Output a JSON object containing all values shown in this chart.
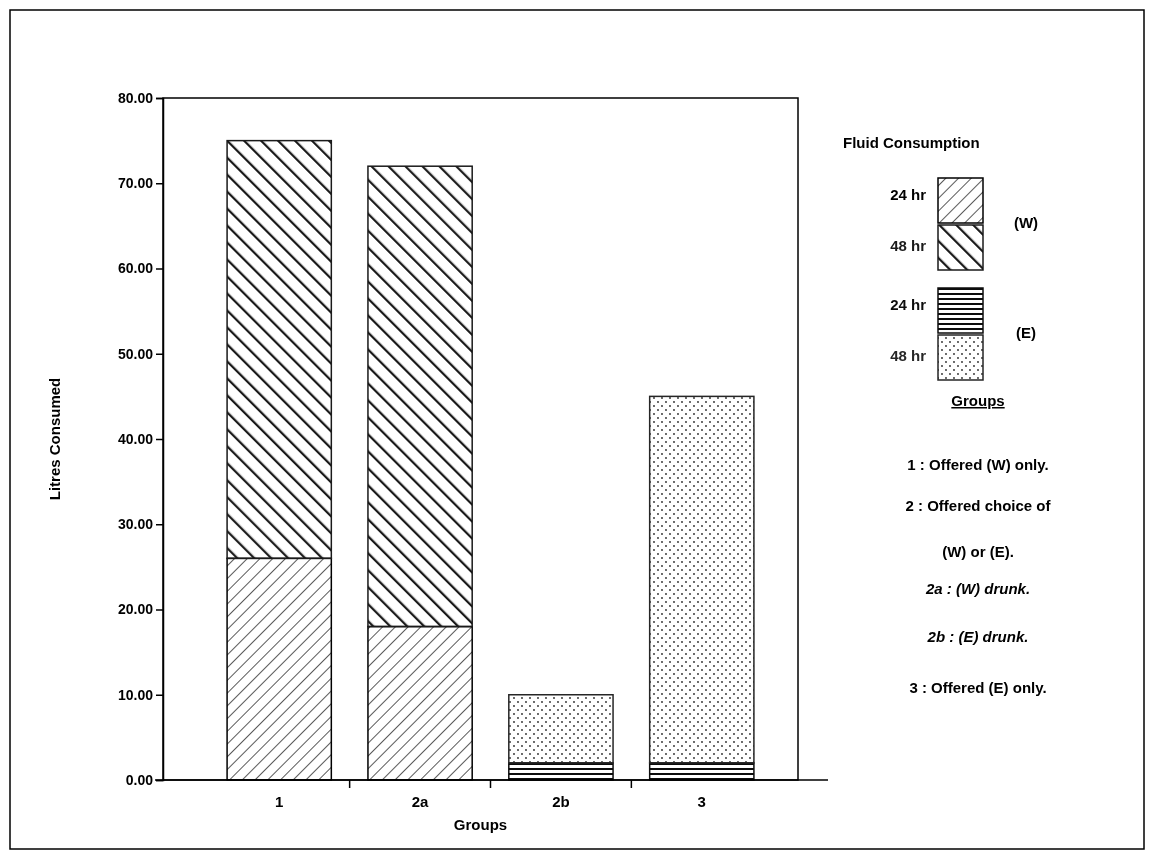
{
  "chart_data": {
    "type": "bar",
    "stacked": true,
    "xlabel": "Groups",
    "ylabel": "Litres Consumed",
    "legend_title": "Fluid Consumption",
    "legend": "right",
    "categories": [
      "1",
      "2a",
      "2b",
      "3"
    ],
    "series": [
      {
        "name": "24 hr",
        "color": "#000000",
        "values": [
          26,
          18,
          null,
          null
        ]
      },
      {
        "name": "48 hr",
        "color": "#1a1a1a",
        "values": [
          49,
          54,
          null,
          null
        ]
      },
      {
        "name": "24 hr",
        "color": "#0d0d0d",
        "values": [
          null,
          null,
          2,
          2
        ]
      },
      {
        "name": "48 hr",
        "color": "#262626",
        "values": [
          null,
          null,
          8,
          43
        ]
      }
    ],
    "ylim": [
      0,
      80
    ],
    "yticks": [
      {
        "value": 0,
        "label": "0.00"
      },
      {
        "value": 10,
        "label": "10.00"
      },
      {
        "value": 20,
        "label": "20.00"
      },
      {
        "value": 30,
        "label": "30.00"
      },
      {
        "value": 40,
        "label": "40.00"
      },
      {
        "value": 50,
        "label": "50.00"
      },
      {
        "value": 60,
        "label": "60.00"
      },
      {
        "value": 70,
        "label": "70.00"
      },
      {
        "value": 80,
        "label": "80.00"
      }
    ],
    "annotations": [
      "(W)",
      "(E)",
      "Groups",
      "1 : Offered (W) only.",
      "2 : Offered choice of",
      "(W) or (E).",
      "2a : (W) drunk.",
      "2b : (E) drunk.",
      "3 : Offered (E) only."
    ]
  }
}
